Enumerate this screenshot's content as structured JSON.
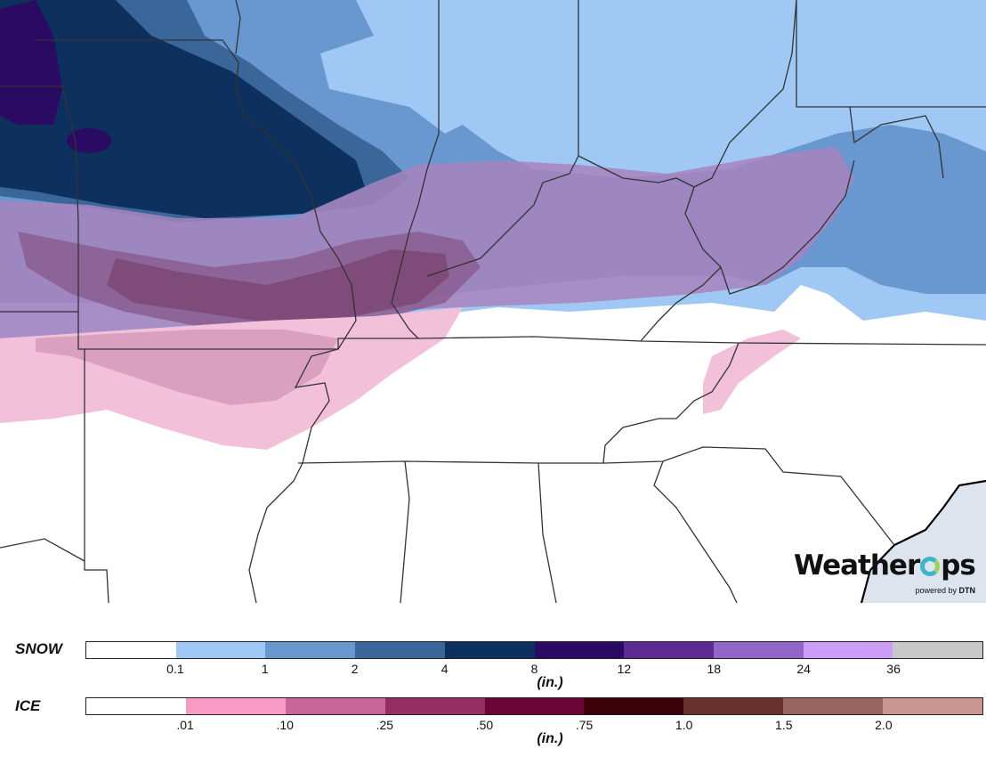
{
  "map": {
    "alt": "Forecast snow and ice accumulation map",
    "colors": {
      "background": "#ffffff",
      "state_line": "#333333",
      "ocean": "#dde4ee",
      "coast": "#000000"
    }
  },
  "logo": {
    "brand_pre": "Weather",
    "brand_post": "ps",
    "powered_by": "powered by",
    "company": "DTN"
  },
  "snow_legend": {
    "label": "SNOW",
    "units": "(in.)",
    "colors": [
      "#ffffff",
      "#9fc8f5",
      "#6898cf",
      "#3a6699",
      "#0d305f",
      "#2a0a63",
      "#5e2a93",
      "#9266c9",
      "#cb9df7",
      "#c8c8c8"
    ],
    "ticks": [
      "0.1",
      "1",
      "2",
      "4",
      "8",
      "12",
      "18",
      "24",
      "36"
    ]
  },
  "ice_legend": {
    "label": "ICE",
    "units": "(in.)",
    "colors": [
      "#ffffff",
      "#f79ac4",
      "#c8669a",
      "#932d62",
      "#6a0535",
      "#3b0008",
      "#6a302e",
      "#986460",
      "#cb9592"
    ],
    "ticks": [
      ".01",
      ".10",
      ".25",
      ".50",
      ".75",
      "1.0",
      "1.5",
      "2.0"
    ]
  }
}
